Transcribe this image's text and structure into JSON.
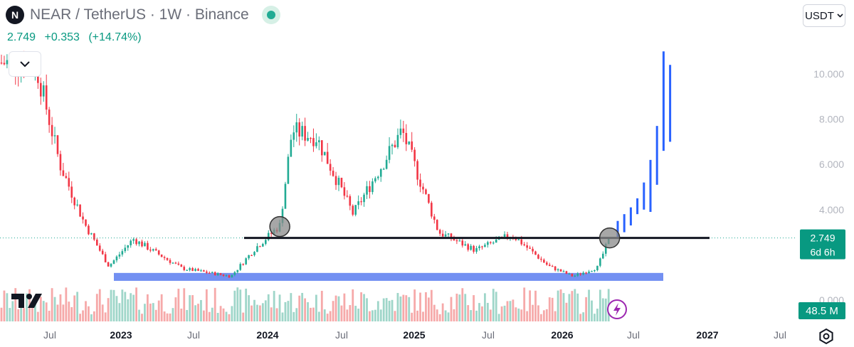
{
  "header": {
    "logo_letter": "N",
    "symbol_title": "NEAR / TetherUS · 1W · Binance",
    "price": "2.749",
    "change": "+0.353",
    "change_pct": "(+14.74%)"
  },
  "currency_selector": {
    "label": "USDT"
  },
  "colors": {
    "up": "#22ab94",
    "down": "#f23645",
    "vol_up": "#9fd6c9",
    "vol_down": "#f6a9a9",
    "projection": "#2962ff",
    "support_zone": "#5b7cf0",
    "resistance_line": "#131722"
  },
  "chart_data": {
    "type": "candlestick",
    "interval": "1W",
    "x_labels": [
      "Jul",
      "2023",
      "Jul",
      "2024",
      "Jul",
      "2025",
      "Jul",
      "2026",
      "Jul",
      "2027",
      "Jul"
    ],
    "y_ticks": [
      "10.000",
      "8.000",
      "6.000",
      "4.000",
      "0.000"
    ],
    "ylim": [
      0,
      11
    ],
    "price_label": {
      "value": "2.749",
      "countdown": "6d 6h"
    },
    "volume_label": "48.5 M",
    "horizontal_line": 2.749,
    "support_zone": [
      0.85,
      1.2
    ],
    "key_points": [
      {
        "x": "2022-06",
        "y": 10.5
      },
      {
        "x": "2022-08",
        "y": 6.0
      },
      {
        "x": "2022-10",
        "y": 3.4
      },
      {
        "x": "2022-12",
        "y": 1.5
      },
      {
        "x": "2023-02",
        "y": 2.7
      },
      {
        "x": "2023-06",
        "y": 1.4
      },
      {
        "x": "2023-10",
        "y": 1.05
      },
      {
        "x": "2023-12",
        "y": 2.3
      },
      {
        "x": "2024-02",
        "y": 3.3
      },
      {
        "x": "2024-03",
        "y": 7.5
      },
      {
        "x": "2024-05",
        "y": 7.2
      },
      {
        "x": "2024-08",
        "y": 3.8
      },
      {
        "x": "2024-12",
        "y": 7.5
      },
      {
        "x": "2025-03",
        "y": 3.0
      },
      {
        "x": "2025-06",
        "y": 2.2
      },
      {
        "x": "2025-09",
        "y": 2.9
      },
      {
        "x": "2025-12",
        "y": 1.5
      },
      {
        "x": "2026-02",
        "y": 1.05
      },
      {
        "x": "2026-04",
        "y": 1.45
      },
      {
        "x": "2026-05",
        "y": 2.749
      }
    ],
    "circle_markers": [
      {
        "x": "2024-02",
        "y": 3.25
      },
      {
        "x": "2026-05",
        "y": 2.749
      }
    ],
    "projection_bars": [
      [
        2.8,
        3.5
      ],
      [
        3.0,
        3.8
      ],
      [
        3.3,
        4.1
      ],
      [
        3.8,
        4.5
      ],
      [
        4.0,
        5.2
      ],
      [
        3.9,
        6.2
      ],
      [
        5.1,
        7.7
      ],
      [
        6.6,
        11.0
      ],
      [
        7.0,
        10.4
      ]
    ]
  }
}
